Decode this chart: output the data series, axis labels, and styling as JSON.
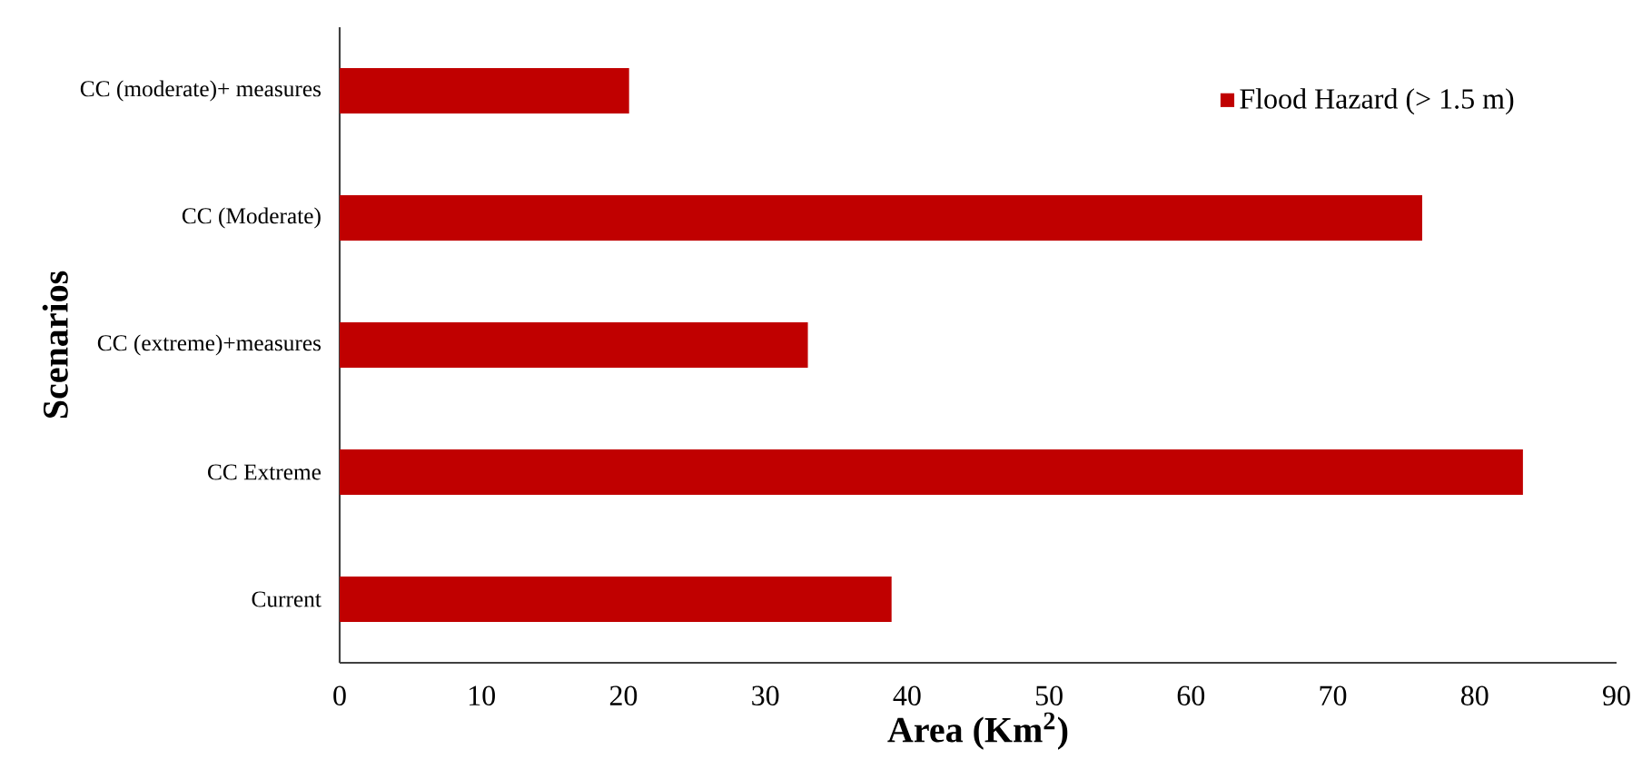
{
  "chart_data": {
    "type": "bar",
    "orientation": "horizontal",
    "xlabel": "Area (Km$^{2}$)",
    "ylabel": "Scenarios",
    "categories": [
      "CC (moderate)+ measures",
      "CC (Moderate)",
      "CC (extreme)+measures",
      "CC Extreme",
      "Current"
    ],
    "series": [
      {
        "name": "Flood Hazard (> 1.5 m)",
        "color": "#c00000",
        "values": [
          20.4,
          76.3,
          33.0,
          83.4,
          38.9
        ]
      }
    ],
    "xlim": [
      0,
      90
    ],
    "xticks": [
      0,
      10,
      20,
      30,
      40,
      50,
      60,
      70,
      80,
      90
    ],
    "grid": false,
    "legend": "top right"
  }
}
